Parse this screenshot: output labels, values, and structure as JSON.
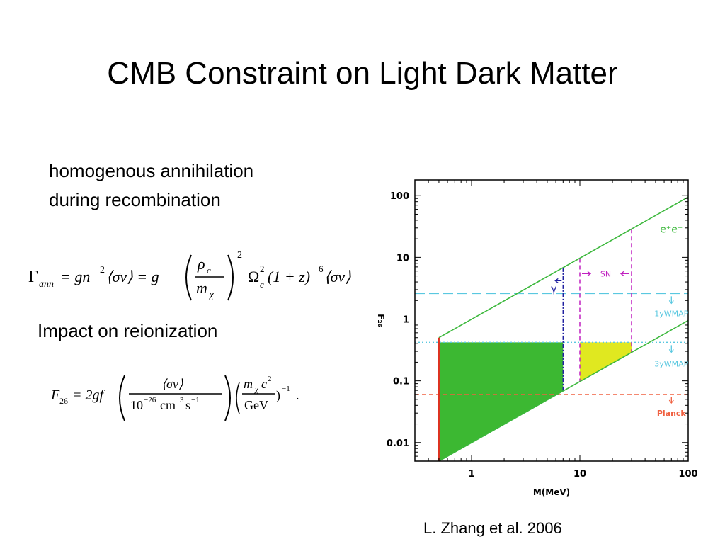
{
  "slide": {
    "title": "CMB Constraint on Light Dark Matter",
    "topic_lines": [
      "homogenous annihilation",
      "during recombination"
    ],
    "impact_heading": "Impact on reionization",
    "citation": "L. Zhang et al. 2006"
  },
  "equations": {
    "gamma_ann": {
      "lhs": "Γ",
      "lhs_sub": "ann",
      "rhs_a": "= gn",
      "rhs_a_sup": "2",
      "rhs_b": "⟨σv⟩ = g",
      "frac_num": "ρ",
      "frac_num_sub": "c",
      "frac_den": "m",
      "frac_den_sub": "χ",
      "paren_sup": "2",
      "omega": "Ω",
      "omega_sup": "2",
      "omega_sub": "c",
      "tail_a": "(1 + z)",
      "tail_sup": "6",
      "tail_b": "⟨σv⟩"
    },
    "f26": {
      "lhs": "F",
      "lhs_sub": "26",
      "rhs": "= 2gf",
      "frac1_num": "⟨σv⟩",
      "frac1_den_a": "10",
      "frac1_den_sup": "−26",
      "frac1_den_b": "cm",
      "frac1_den_sup2": "3",
      "frac1_den_c": "s",
      "frac1_den_sup3": "−1",
      "frac2_num_a": "m",
      "frac2_num_sub": "χ",
      "frac2_num_b": "c",
      "frac2_num_sup": "2",
      "frac2_den": "GeV",
      "tail": ")",
      "tail_sup": "−1",
      "period": "."
    }
  },
  "chart_data": {
    "type": "line",
    "xlabel": "M(MeV)",
    "ylabel": "F₂₆",
    "x_scale": "log",
    "y_scale": "log",
    "xlim": [
      0.3,
      100
    ],
    "ylim": [
      0.005,
      180
    ],
    "x_ticks": [
      {
        "value": 1,
        "label": "1"
      },
      {
        "value": 10,
        "label": "10"
      },
      {
        "value": 100,
        "label": "100"
      }
    ],
    "y_ticks": [
      {
        "value": 0.01,
        "label": "0.01"
      },
      {
        "value": 0.1,
        "label": "0.1"
      },
      {
        "value": 1,
        "label": "1"
      },
      {
        "value": 10,
        "label": "10"
      },
      {
        "value": 100,
        "label": "100"
      }
    ],
    "lines": {
      "upper": {
        "points": [
          [
            0.5,
            0.5
          ],
          [
            100,
            95
          ]
        ],
        "color": "#3cb83c"
      },
      "lower": {
        "points": [
          [
            0.5,
            0.005
          ],
          [
            100,
            0.95
          ]
        ],
        "color": "#3cb83c"
      },
      "mass_cutoff": {
        "x": 0.5,
        "y_range": [
          0.005,
          0.5
        ],
        "color": "#e03020"
      },
      "wmap1": {
        "y": 2.6,
        "color": "#5ac8e0",
        "label": "1yWMAP"
      },
      "wmap3": {
        "y": 0.42,
        "color": "#5ac8e0",
        "label": "3yWMAP"
      },
      "planck": {
        "y": 0.06,
        "color": "#f06040",
        "label": "Planck"
      },
      "gamma": {
        "x": 7,
        "color": "#2020a0",
        "label": "γ"
      },
      "sn_left": {
        "x": 10,
        "color": "#c020c0"
      },
      "sn_right": {
        "x": 30,
        "color": "#c020c0",
        "label": "SN"
      }
    },
    "regions": [
      {
        "name": "excluded-green",
        "x": [
          0.5,
          7
        ],
        "y_top": 0.42,
        "color": "#3cb832"
      },
      {
        "name": "allowed-yellow",
        "x": [
          10,
          30
        ],
        "y_top": 0.42,
        "color": "#e0e820"
      }
    ],
    "annotations": [
      {
        "text": "e⁺e⁻",
        "x": 70,
        "y": 25,
        "color": "#3cb83c"
      }
    ]
  }
}
